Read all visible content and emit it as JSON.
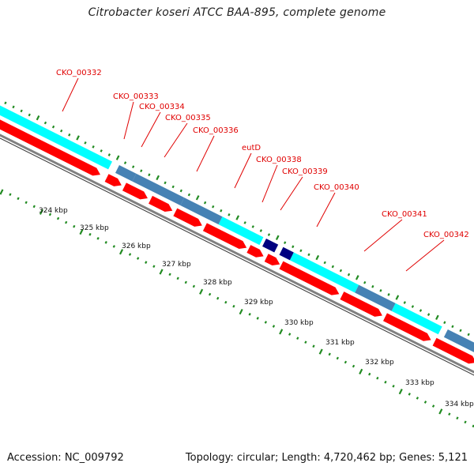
{
  "title": "Citrobacter koseri ATCC BAA-895, complete genome",
  "accession": "Accession: NC_009792",
  "topology": "Topology: circular; Length: 4,720,462 bp; Genes: 5,121",
  "colors": {
    "cds": "#ff0000",
    "cog_cyan": "#00ffff",
    "cog_steelblue": "#4682b4",
    "cog_navy": "#000080",
    "tick": "#228b22",
    "backbone": "#808080",
    "label": "#e00000"
  },
  "genes": [
    {
      "name": "CKO_00332",
      "strand": "-",
      "cog_color": "cyan"
    },
    {
      "name": "CKO_00333",
      "strand": "-",
      "cog_color": "steelblue"
    },
    {
      "name": "CKO_00334",
      "strand": "-",
      "cog_color": "steelblue"
    },
    {
      "name": "CKO_00335",
      "strand": "-",
      "cog_color": "steelblue"
    },
    {
      "name": "CKO_00336",
      "strand": "-",
      "cog_color": "cyan"
    },
    {
      "name": "eutD",
      "strand": "-",
      "cog_color": "navy"
    },
    {
      "name": "CKO_00338",
      "strand": "-",
      "cog_color": "navy"
    },
    {
      "name": "CKO_00339",
      "strand": "-",
      "cog_color": "cyan"
    },
    {
      "name": "CKO_00340",
      "strand": "-",
      "cog_color": "cyan"
    },
    {
      "name": "CKO_00341",
      "strand": "-",
      "cog_color": "steelblue"
    },
    {
      "name": "CKO_00342",
      "strand": "-",
      "cog_color": "cyan"
    }
  ],
  "axis_ticks": [
    "324 kbp",
    "325 kbp",
    "326 kbp",
    "327 kbp",
    "328 kbp",
    "329 kbp",
    "330 kbp",
    "331 kbp",
    "332 kbp",
    "333 kbp",
    "334 kbp"
  ]
}
